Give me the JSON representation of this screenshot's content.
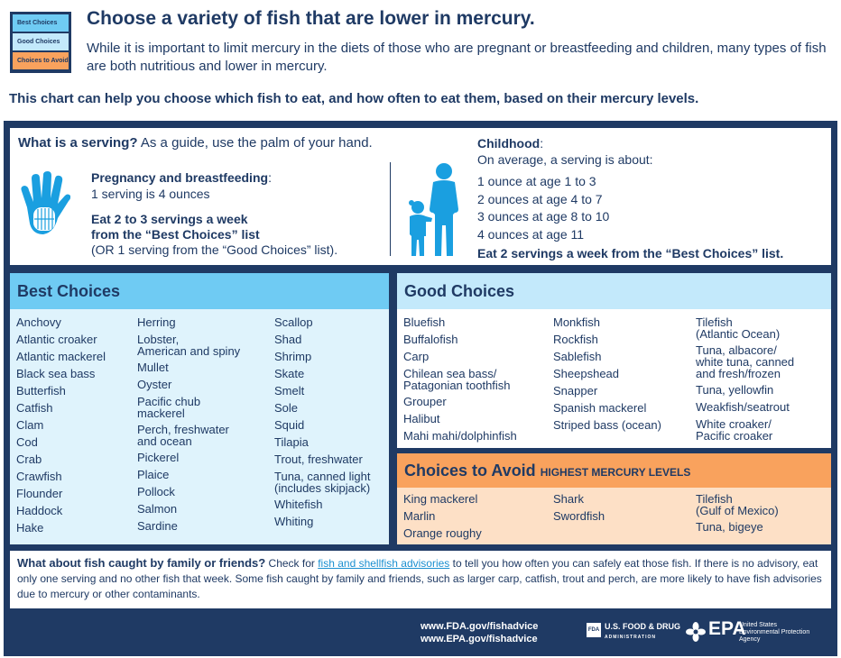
{
  "legend": {
    "best": "Best Choices",
    "good": "Good Choices",
    "avoid": "Choices to Avoid"
  },
  "header": {
    "title": "Choose a variety of fish that are lower in mercury.",
    "intro": "While it is important to limit mercury in the diets of those who are pregnant or breastfeeding and children, many types of fish are both nutritious and lower in mercury.",
    "subhead": "This chart can help you choose which fish to eat, and how often to eat them, based on their mercury levels."
  },
  "serving": {
    "question_bold": "What is a serving?",
    "question_rest": " As a guide, use the palm of your hand.",
    "pregnancy_label": "Pregnancy and breastfeeding",
    "pregnancy_colon": ":",
    "pregnancy_amount": "1 serving is 4 ounces",
    "pregnancy_advice_1": "Eat 2 to 3 servings a week",
    "pregnancy_advice_2": "from the “Best Choices” list",
    "pregnancy_advice_3": "(OR 1 serving from the “Good Choices” list).",
    "childhood_label": "Childhood",
    "childhood_colon": ":",
    "childhood_intro": "On average, a serving is about:",
    "childhood_list": [
      "1 ounce at age 1 to 3",
      "2 ounces at age 4 to 7",
      "3 ounces at age 8 to 10",
      "4 ounces at age 11"
    ],
    "childhood_advice": "Eat 2 servings a week from the “Best Choices” list."
  },
  "best": {
    "title": "Best Choices",
    "col1": [
      "Anchovy",
      "Atlantic croaker",
      "Atlantic mackerel",
      "Black sea bass",
      "Butterfish",
      "Catfish",
      "Clam",
      "Cod",
      "Crab",
      "Crawfish",
      "Flounder",
      "Haddock",
      "Hake"
    ],
    "col2": [
      "Herring",
      "Lobster,\nAmerican and spiny",
      "Mullet",
      "Oyster",
      "Pacific chub\nmackerel",
      "Perch, freshwater\nand ocean",
      "Pickerel",
      "Plaice",
      "Pollock",
      "Salmon",
      "Sardine"
    ],
    "col3": [
      "Scallop",
      "Shad",
      "Shrimp",
      "Skate",
      "Smelt",
      "Sole",
      "Squid",
      "Tilapia",
      "Trout, freshwater",
      "Tuna, canned light\n(includes skipjack)",
      "Whitefish",
      "Whiting"
    ]
  },
  "good": {
    "title": "Good Choices",
    "col1": [
      "Bluefish",
      "Buffalofish",
      "Carp",
      "Chilean sea bass/\nPatagonian toothfish",
      "Grouper",
      "Halibut",
      "Mahi mahi/dolphinfish"
    ],
    "col2": [
      "Monkfish",
      "Rockfish",
      "Sablefish",
      "Sheepshead",
      "Snapper",
      "Spanish mackerel",
      "Striped bass (ocean)"
    ],
    "col3": [
      "Tilefish\n(Atlantic Ocean)",
      "Tuna, albacore/\nwhite tuna, canned\nand fresh/frozen",
      "Tuna, yellowfin",
      "Weakfish/seatrout",
      "White croaker/\nPacific croaker"
    ]
  },
  "avoid": {
    "title": "Choices to Avoid",
    "subtitle": "HIGHEST MERCURY LEVELS",
    "col1": [
      "King mackerel",
      "Marlin",
      "Orange roughy"
    ],
    "col2": [
      "Shark",
      "Swordfish"
    ],
    "col3": [
      "Tilefish\n(Gulf of Mexico)",
      "Tuna, bigeye"
    ]
  },
  "footer": {
    "question": "What about fish caught by family or friends?",
    "text_before": " Check for ",
    "link": "fish and shellfish advisories",
    "text_after": " to tell you how often you can safely eat those fish. If there is no advisory, eat only one serving and no other fish that week. Some fish caught by family and friends, such as larger carp, catfish, trout and perch, are more likely to have fish advisories due to mercury or other contaminants."
  },
  "bottom": {
    "url_fda": "www.FDA.gov/fishadvice",
    "url_epa": "www.EPA.gov/fishadvice",
    "fda_mark": "FDA",
    "fda_name": "U.S. FOOD & DRUG",
    "fda_sub": "ADMINISTRATION",
    "epa_name": "EPA",
    "epa_sub_1": "United States",
    "epa_sub_2": "Environmental Protection",
    "epa_sub_3": "Agency"
  },
  "colors": {
    "navy": "#1f3a64",
    "best": "#6fcbf3",
    "best_light": "#dff3fc",
    "good": "#c3e9fb",
    "avoid": "#f9a25d",
    "avoid_light": "#fde0c6",
    "link": "#1a8fd0"
  }
}
